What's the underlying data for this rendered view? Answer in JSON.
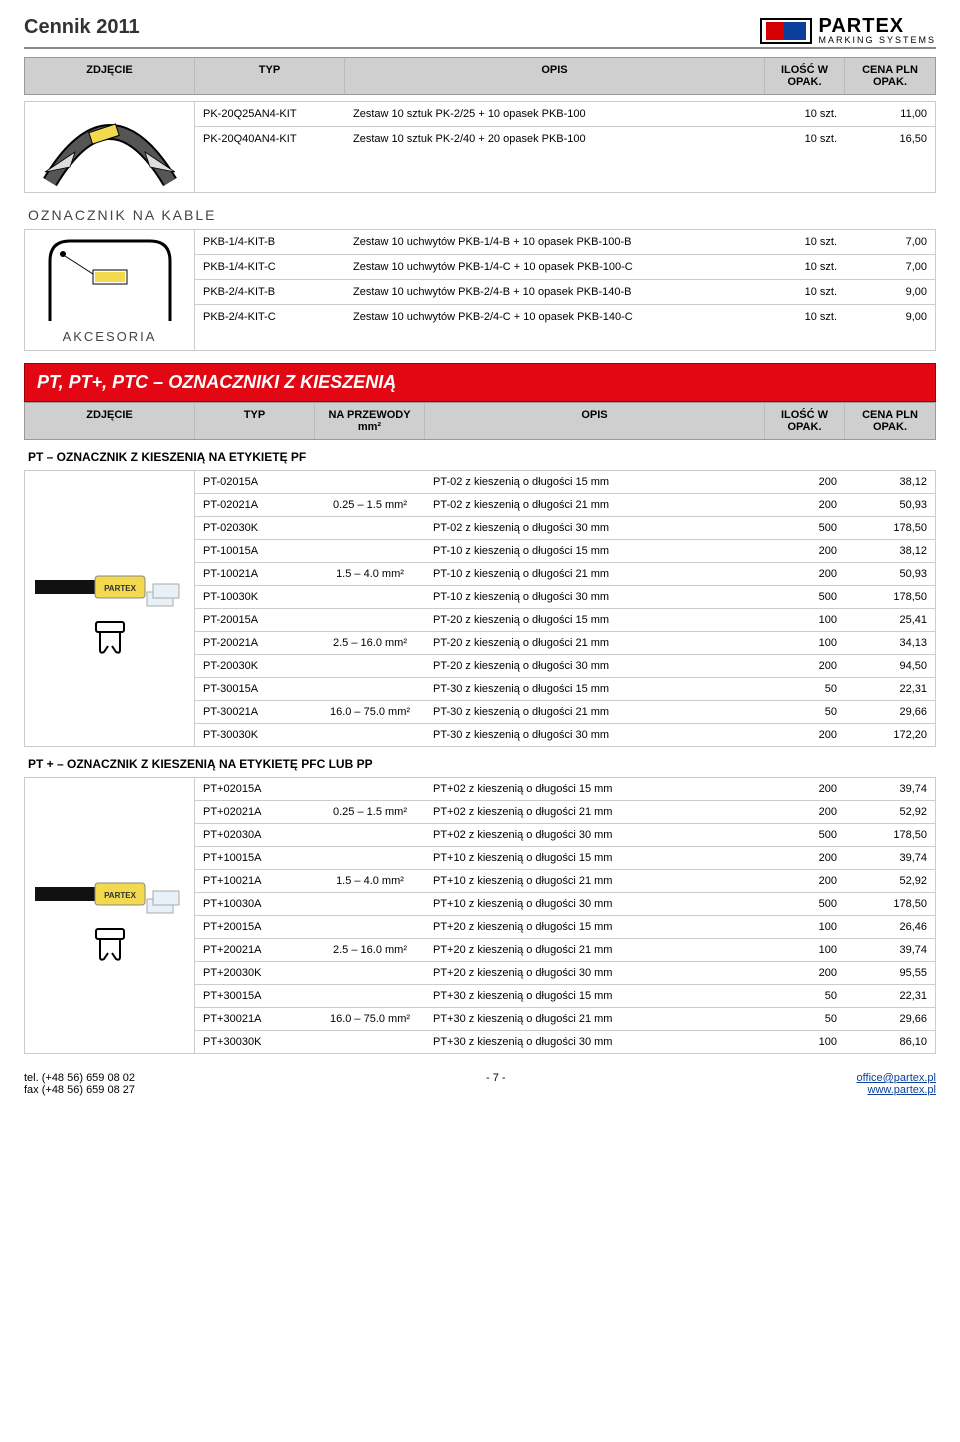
{
  "header": {
    "title": "Cennik 2011",
    "brand_big": "PARTEX",
    "brand_small": "MARKING SYSTEMS"
  },
  "topHeader": {
    "photo": "ZDJĘCIE",
    "typ": "TYP",
    "opis": "OPIS",
    "qty": "ILOŚĆ W OPAK.",
    "price": "CENA PLN OPAK."
  },
  "block1": {
    "rows": [
      {
        "typ": "PK-20Q25AN4-KIT",
        "opis": "Zestaw 10 sztuk PK-2/25 + 10 opasek PKB-100",
        "qty": "10 szt.",
        "price": "11,00"
      },
      {
        "typ": "PK-20Q40AN4-KIT",
        "opis": "Zestaw 10 sztuk PK-2/40 + 20 opasek PKB-100",
        "qty": "10 szt.",
        "price": "16,50"
      }
    ]
  },
  "labels": {
    "oznacznik_na_kable": "OZNACZNIK NA KABLE",
    "akcesoria": "AKCESORIA"
  },
  "block2": {
    "rows": [
      {
        "typ": "PKB-1/4-KIT-B",
        "opis": "Zestaw 10 uchwytów PKB-1/4-B + 10 opasek PKB-100-B",
        "qty": "10 szt.",
        "price": "7,00"
      },
      {
        "typ": "PKB-1/4-KIT-C",
        "opis": "Zestaw 10 uchwytów PKB-1/4-C + 10 opasek PKB-100-C",
        "qty": "10 szt.",
        "price": "7,00"
      },
      {
        "typ": "PKB-2/4-KIT-B",
        "opis": "Zestaw 10 uchwytów PKB-2/4-B + 10 opasek PKB-140-B",
        "qty": "10 szt.",
        "price": "9,00"
      },
      {
        "typ": "PKB-2/4-KIT-C",
        "opis": "Zestaw 10 uchwytów PKB-2/4-C + 10 opasek PKB-140-C",
        "qty": "10 szt.",
        "price": "9,00"
      }
    ]
  },
  "redBar": "PT, PT+, PTC – OZNACZNIKI Z KIESZENIĄ",
  "header5": {
    "photo": "ZDJĘCIE",
    "typ": "TYP",
    "wire": "NA PRZEWODY mm²",
    "opis": "OPIS",
    "qty": "ILOŚĆ W OPAK.",
    "price": "CENA PLN OPAK."
  },
  "sections": [
    {
      "title": "PT – OZNACZNIK Z KIESZENIĄ NA ETYKIETĘ PF",
      "groups": [
        {
          "wire": "0.25 – 1.5 mm²",
          "rows": [
            {
              "typ": "PT-02015A",
              "opis": "PT-02 z kieszenią o długości 15 mm",
              "qty": "200",
              "price": "38,12"
            },
            {
              "typ": "PT-02021A",
              "opis": "PT-02 z kieszenią o długości 21 mm",
              "qty": "200",
              "price": "50,93"
            },
            {
              "typ": "PT-02030K",
              "opis": "PT-02 z kieszenią o długości 30 mm",
              "qty": "500",
              "price": "178,50"
            }
          ]
        },
        {
          "wire": "1.5 – 4.0 mm²",
          "rows": [
            {
              "typ": "PT-10015A",
              "opis": "PT-10 z kieszenią o długości 15 mm",
              "qty": "200",
              "price": "38,12"
            },
            {
              "typ": "PT-10021A",
              "opis": "PT-10 z kieszenią o długości 21 mm",
              "qty": "200",
              "price": "50,93"
            },
            {
              "typ": "PT-10030K",
              "opis": "PT-10 z kieszenią o długości 30 mm",
              "qty": "500",
              "price": "178,50"
            }
          ]
        },
        {
          "wire": "2.5 – 16.0 mm²",
          "rows": [
            {
              "typ": "PT-20015A",
              "opis": "PT-20 z kieszenią o długości 15 mm",
              "qty": "100",
              "price": "25,41"
            },
            {
              "typ": "PT-20021A",
              "opis": "PT-20 z kieszenią o długości 21 mm",
              "qty": "100",
              "price": "34,13"
            },
            {
              "typ": "PT-20030K",
              "opis": "PT-20 z kieszenią o długości 30 mm",
              "qty": "200",
              "price": "94,50"
            }
          ]
        },
        {
          "wire": "16.0 – 75.0 mm²",
          "rows": [
            {
              "typ": "PT-30015A",
              "opis": "PT-30 z kieszenią o długości 15 mm",
              "qty": "50",
              "price": "22,31"
            },
            {
              "typ": "PT-30021A",
              "opis": "PT-30 z kieszenią o długości 21 mm",
              "qty": "50",
              "price": "29,66"
            },
            {
              "typ": "PT-30030K",
              "opis": "PT-30 z kieszenią o długości 30 mm",
              "qty": "200",
              "price": "172,20"
            }
          ]
        }
      ]
    },
    {
      "title": "PT + – OZNACZNIK Z KIESZENIĄ NA ETYKIETĘ PFC LUB PP",
      "groups": [
        {
          "wire": "0.25 – 1.5 mm²",
          "rows": [
            {
              "typ": "PT+02015A",
              "opis": "PT+02 z kieszenią o długości 15 mm",
              "qty": "200",
              "price": "39,74"
            },
            {
              "typ": "PT+02021A",
              "opis": "PT+02 z kieszenią o długości 21 mm",
              "qty": "200",
              "price": "52,92"
            },
            {
              "typ": "PT+02030A",
              "opis": "PT+02 z kieszenią o długości 30 mm",
              "qty": "500",
              "price": "178,50"
            }
          ]
        },
        {
          "wire": "1.5 – 4.0 mm²",
          "rows": [
            {
              "typ": "PT+10015A",
              "opis": "PT+10 z kieszenią o długości 15 mm",
              "qty": "200",
              "price": "39,74"
            },
            {
              "typ": "PT+10021A",
              "opis": "PT+10 z kieszenią o długości 21 mm",
              "qty": "200",
              "price": "52,92"
            },
            {
              "typ": "PT+10030A",
              "opis": "PT+10 z kieszenią o długości 30 mm",
              "qty": "500",
              "price": "178,50"
            }
          ]
        },
        {
          "wire": "2.5 – 16.0 mm²",
          "rows": [
            {
              "typ": "PT+20015A",
              "opis": "PT+20 z kieszenią o długości 15 mm",
              "qty": "100",
              "price": "26,46"
            },
            {
              "typ": "PT+20021A",
              "opis": "PT+20 z kieszenią o długości 21 mm",
              "qty": "100",
              "price": "39,74"
            },
            {
              "typ": "PT+20030K",
              "opis": "PT+20 z kieszenią o długości 30 mm",
              "qty": "200",
              "price": "95,55"
            }
          ]
        },
        {
          "wire": "16.0 – 75.0 mm²",
          "rows": [
            {
              "typ": "PT+30015A",
              "opis": "PT+30 z kieszenią o długości 15 mm",
              "qty": "50",
              "price": "22,31"
            },
            {
              "typ": "PT+30021A",
              "opis": "PT+30 z kieszenią o długości 21 mm",
              "qty": "50",
              "price": "29,66"
            },
            {
              "typ": "PT+30030K",
              "opis": "PT+30 z kieszenią o długości 30 mm",
              "qty": "100",
              "price": "86,10"
            }
          ]
        }
      ]
    }
  ],
  "footer": {
    "tel": "tel. (+48 56) 659 08 02",
    "fax": "fax (+48 56) 659 08 27",
    "page": "- 7 -",
    "email": "office@partex.pl",
    "web": "www.partex.pl"
  },
  "colors": {
    "red": "#e30613",
    "gray_header": "#cfcfcf",
    "border": "#cccccc",
    "link": "#0a3f9a"
  }
}
